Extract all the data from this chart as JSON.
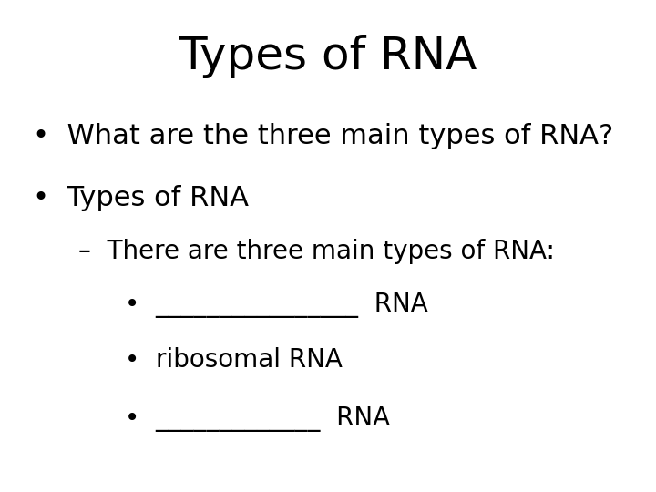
{
  "title": "Types of RNA",
  "background_color": "#ffffff",
  "text_color": "#000000",
  "title_fontsize": 36,
  "body_fontsize": 22,
  "sub_fontsize": 20,
  "bullet1": "What are the three main types of RNA?",
  "bullet2": "Types of RNA",
  "dash1": "There are three main types of RNA:",
  "sub1_blank": "________________",
  "sub1_post": "  RNA",
  "sub2": "ribosomal RNA",
  "sub3_blank": "_____________",
  "sub3_post": "  RNA"
}
